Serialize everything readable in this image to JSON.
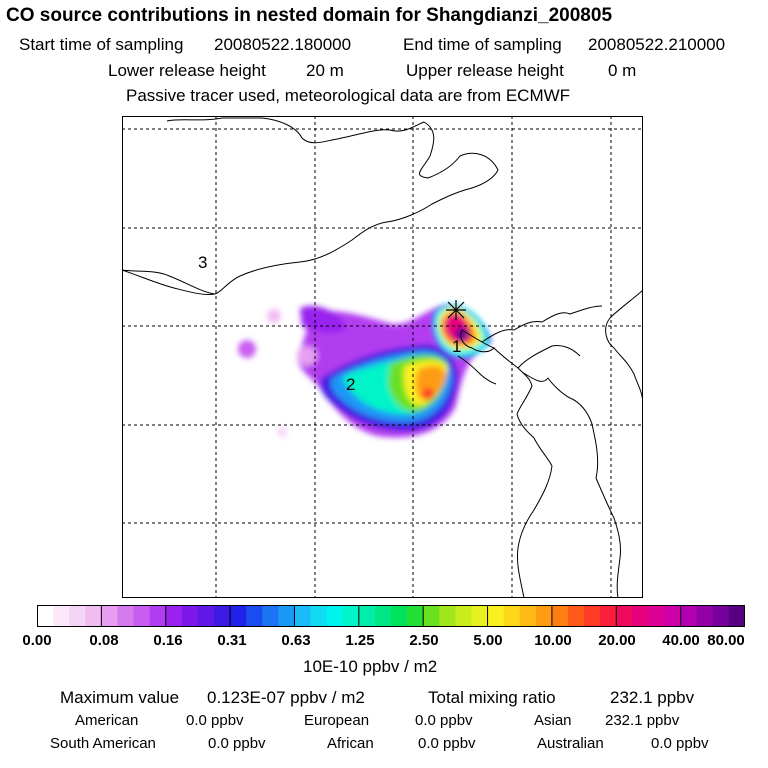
{
  "header": {
    "title": "CO  source contributions in nested domain for Shangdianzi_200805",
    "start_label": "Start time of sampling",
    "start_value": "20080522.180000",
    "end_label": "End time of sampling",
    "end_value": "20080522.210000",
    "lower_label": "Lower release height",
    "lower_value": "20 m",
    "upper_label": "Upper release height",
    "upper_value": "0 m",
    "note": "Passive tracer used, meteorological data are from ECMWF"
  },
  "map": {
    "labels": [
      "1",
      "2",
      "3"
    ]
  },
  "colorbar": {
    "ticks": [
      "0.00",
      "0.08",
      "0.16",
      "0.31",
      "0.63",
      "1.25",
      "2.50",
      "5.00",
      "10.00",
      "20.00",
      "40.00",
      "80.00"
    ],
    "unit": "10E-10 ppbv / m2",
    "colors": [
      "#ffffff",
      "#fbe8fb",
      "#f6d4f6",
      "#f0bcf2",
      "#e79ef0",
      "#d87aef",
      "#c95df0",
      "#b23cf0",
      "#9a22ee",
      "#7c18ea",
      "#6018e6",
      "#3c1ce2",
      "#2022e8",
      "#1c4cf0",
      "#1a74f4",
      "#1a98f6",
      "#18bcf6",
      "#12dcf4",
      "#00f4ee",
      "#00f4c8",
      "#00eeaa",
      "#00e684",
      "#00e25a",
      "#22e034",
      "#6ae020",
      "#a0e61a",
      "#c8ec1c",
      "#e8f020",
      "#faf020",
      "#ffd71a",
      "#ffb914",
      "#ff9c12",
      "#ff7e14",
      "#ff5a1a",
      "#ff3a26",
      "#fa1e3a",
      "#f00a5c",
      "#e6007e",
      "#dc0096",
      "#cc00a6",
      "#b200b0",
      "#9400a8",
      "#76009a",
      "#560082"
    ]
  },
  "summary": {
    "max_label": "Maximum value",
    "max_value": "0.123E-07 ppbv / m2",
    "total_label": "Total mixing ratio",
    "total_value": "232.1 ppbv"
  },
  "regions": {
    "american_label": "American",
    "american_value": "0.0 ppbv",
    "european_label": "European",
    "european_value": "0.0 ppbv",
    "asian_label": "Asian",
    "asian_value": "232.1 ppbv",
    "south_american_label": "South American",
    "south_american_value": "0.0 ppbv",
    "african_label": "African",
    "african_value": "0.0 ppbv",
    "australian_label": "Australian",
    "australian_value": "0.0 ppbv"
  }
}
